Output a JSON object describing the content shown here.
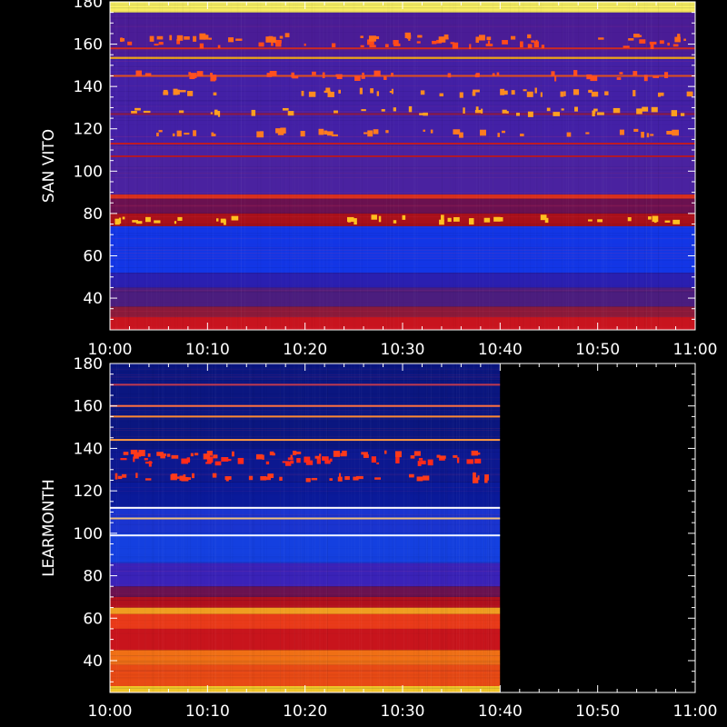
{
  "chart_data": [
    {
      "type": "heatmap",
      "ylabel": "SAN VITO",
      "xlim": [
        "10:00",
        "11:00"
      ],
      "ylim": [
        25,
        180
      ],
      "x_ticks": [
        "10:00",
        "10:10",
        "10:20",
        "10:30",
        "10:40",
        "10:50",
        "11:00"
      ],
      "y_ticks": [
        40,
        60,
        80,
        100,
        120,
        140,
        160,
        180
      ],
      "data_end": "11:00",
      "bands": [
        {
          "from": 25,
          "to": 31,
          "color": "#c8141e"
        },
        {
          "from": 31,
          "to": 36,
          "color": "#8a1a3a"
        },
        {
          "from": 36,
          "to": 45,
          "color": "#4b1d7e"
        },
        {
          "from": 45,
          "to": 52,
          "color": "#2a1fb0"
        },
        {
          "from": 52,
          "to": 74,
          "color": "#1236e6"
        },
        {
          "from": 74,
          "to": 80,
          "color": "#a8101a"
        },
        {
          "from": 80,
          "to": 87,
          "color": "#6a1150"
        },
        {
          "from": 87,
          "to": 89,
          "color": "#d8301c"
        },
        {
          "from": 89,
          "to": 112,
          "color": "#4a22a0"
        },
        {
          "from": 112,
          "to": 153,
          "color": "#4320a6"
        },
        {
          "from": 153,
          "to": 154,
          "color": "#ffb020"
        },
        {
          "from": 154,
          "to": 175,
          "color": "#4a1c96"
        },
        {
          "from": 175,
          "to": 180,
          "color": "#f8f060"
        }
      ],
      "lines": [
        {
          "y": 107,
          "color": "#b0182a"
        },
        {
          "y": 113,
          "color": "#c01a22"
        },
        {
          "y": 127,
          "color": "#8a1840"
        },
        {
          "y": 145,
          "color": "#e0501c"
        },
        {
          "y": 158,
          "color": "#d02a20"
        }
      ],
      "sparks": [
        {
          "y": 77,
          "color": "#ffc020"
        },
        {
          "y": 118,
          "color": "#ff7a20"
        },
        {
          "y": 128,
          "color": "#ffa020"
        },
        {
          "y": 137,
          "color": "#ff8a20"
        },
        {
          "y": 145,
          "color": "#ff5020"
        },
        {
          "y": 160,
          "color": "#ff4a1a"
        },
        {
          "y": 163,
          "color": "#ff6a1a"
        }
      ]
    },
    {
      "type": "heatmap",
      "ylabel": "LEARMONTH",
      "xlim": [
        "10:00",
        "11:00"
      ],
      "ylim": [
        25,
        180
      ],
      "x_ticks": [
        "10:00",
        "10:10",
        "10:20",
        "10:30",
        "10:40",
        "10:50",
        "11:00"
      ],
      "y_ticks": [
        40,
        60,
        80,
        100,
        120,
        140,
        160,
        180
      ],
      "data_end": "10:40",
      "bands": [
        {
          "from": 25,
          "to": 28,
          "color": "#f0c828"
        },
        {
          "from": 28,
          "to": 38,
          "color": "#e84a14"
        },
        {
          "from": 38,
          "to": 45,
          "color": "#f07014"
        },
        {
          "from": 45,
          "to": 55,
          "color": "#c8141c"
        },
        {
          "from": 55,
          "to": 62,
          "color": "#e83a18"
        },
        {
          "from": 62,
          "to": 65,
          "color": "#f0a020"
        },
        {
          "from": 65,
          "to": 70,
          "color": "#b0101c"
        },
        {
          "from": 70,
          "to": 75,
          "color": "#6a1250"
        },
        {
          "from": 75,
          "to": 86,
          "color": "#3a22b8"
        },
        {
          "from": 86,
          "to": 100,
          "color": "#1440e0"
        },
        {
          "from": 100,
          "to": 112,
          "color": "#1a34d0"
        },
        {
          "from": 112,
          "to": 124,
          "color": "#0a1a9a"
        },
        {
          "from": 124,
          "to": 140,
          "color": "#0c1890"
        },
        {
          "from": 140,
          "to": 180,
          "color": "#0a1680"
        }
      ],
      "lines": [
        {
          "y": 99,
          "color": "#f0f0ff"
        },
        {
          "y": 107,
          "color": "#f0c080"
        },
        {
          "y": 112,
          "color": "#ffffff"
        },
        {
          "y": 144,
          "color": "#ff9a40"
        },
        {
          "y": 155,
          "color": "#ff8a30"
        },
        {
          "y": 160,
          "color": "#ff7040"
        },
        {
          "y": 170,
          "color": "#c03a50"
        }
      ],
      "sparks": [
        {
          "y": 126,
          "color": "#ff3a1a"
        },
        {
          "y": 134,
          "color": "#ff2a1a"
        },
        {
          "y": 137,
          "color": "#ff3a1a"
        }
      ]
    }
  ]
}
